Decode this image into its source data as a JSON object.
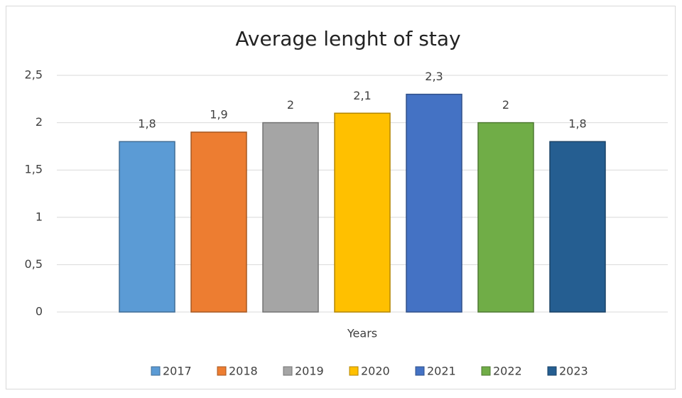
{
  "chart_data": {
    "type": "bar",
    "title": "Average lenght of stay",
    "categories": [
      "Years"
    ],
    "ylim": [
      0,
      2.5
    ],
    "yticks": [
      0,
      {
        "value": 0.5,
        "label": "0,5"
      },
      1,
      {
        "value": 1.5,
        "label": "1,5"
      },
      2,
      {
        "value": 2.5,
        "label": "2,5"
      }
    ],
    "grid": true,
    "legend": "bottom",
    "series": [
      {
        "name": "2017",
        "color": "#5b9bd5",
        "values": [
          1.8
        ],
        "value_labels": [
          "1,8"
        ]
      },
      {
        "name": "2018",
        "color": "#ed7d31",
        "values": [
          1.9
        ],
        "value_labels": [
          "1,9"
        ]
      },
      {
        "name": "2019",
        "color": "#a5a5a5",
        "values": [
          2
        ]
      },
      {
        "name": "2020",
        "color": "#ffc000",
        "values": [
          2.1
        ],
        "value_labels": [
          "2,1"
        ]
      },
      {
        "name": "2021",
        "color": "#4472c4",
        "values": [
          2.3
        ],
        "value_labels": [
          "2,3"
        ]
      },
      {
        "name": "2022",
        "color": "#70ad47",
        "values": [
          2
        ]
      },
      {
        "name": "2023",
        "color": "#255e91",
        "values": [
          1.8
        ],
        "value_labels": [
          "1,8"
        ]
      }
    ]
  }
}
